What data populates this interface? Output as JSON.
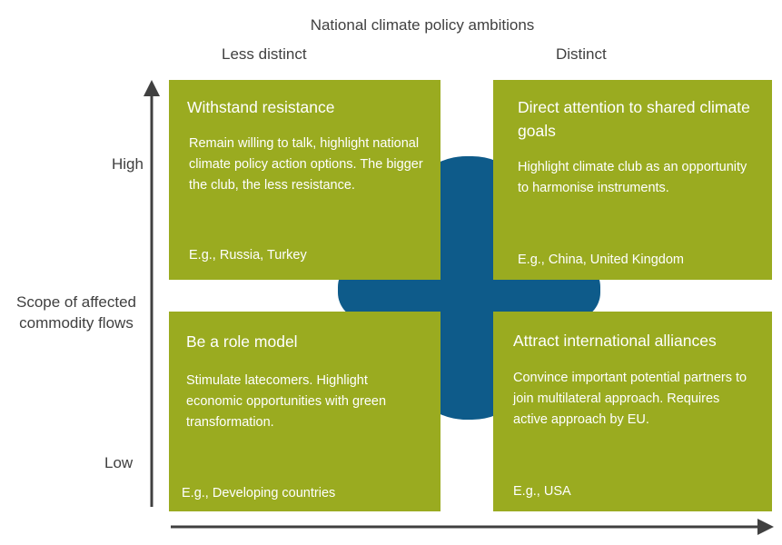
{
  "title": "National climate policy ambitions",
  "columns": {
    "left": "Less distinct",
    "right": "Distinct"
  },
  "rows": {
    "high": "High",
    "low": "Low"
  },
  "y_axis_label": "Scope of affected commodity flows",
  "colors": {
    "quadrant": "#9aab20",
    "center": "#0e5b8a",
    "axis": "#404040",
    "text": "#404040"
  },
  "quadrants": {
    "top_left": {
      "title": "Withstand resistance",
      "body": "Remain willing to talk, highlight national climate policy action options.  The bigger the club, the less resistance.",
      "example": "E.g., Russia, Turkey"
    },
    "top_right": {
      "title": "Direct attention to shared climate goals",
      "body": "Highlight climate club as an opportunity to harmonise instruments.",
      "example": "E.g.,  China, United Kingdom"
    },
    "bottom_left": {
      "title": "Be a role model",
      "body": "Stimulate latecomers. Highlight economic opportunities with green transformation.",
      "example": "E.g., Developing countries"
    },
    "bottom_right": {
      "title": "Attract international alliances",
      "body": "Convince important potential partners to join multilateral approach. Requires active approach by EU.",
      "example": "E.g., USA"
    }
  }
}
